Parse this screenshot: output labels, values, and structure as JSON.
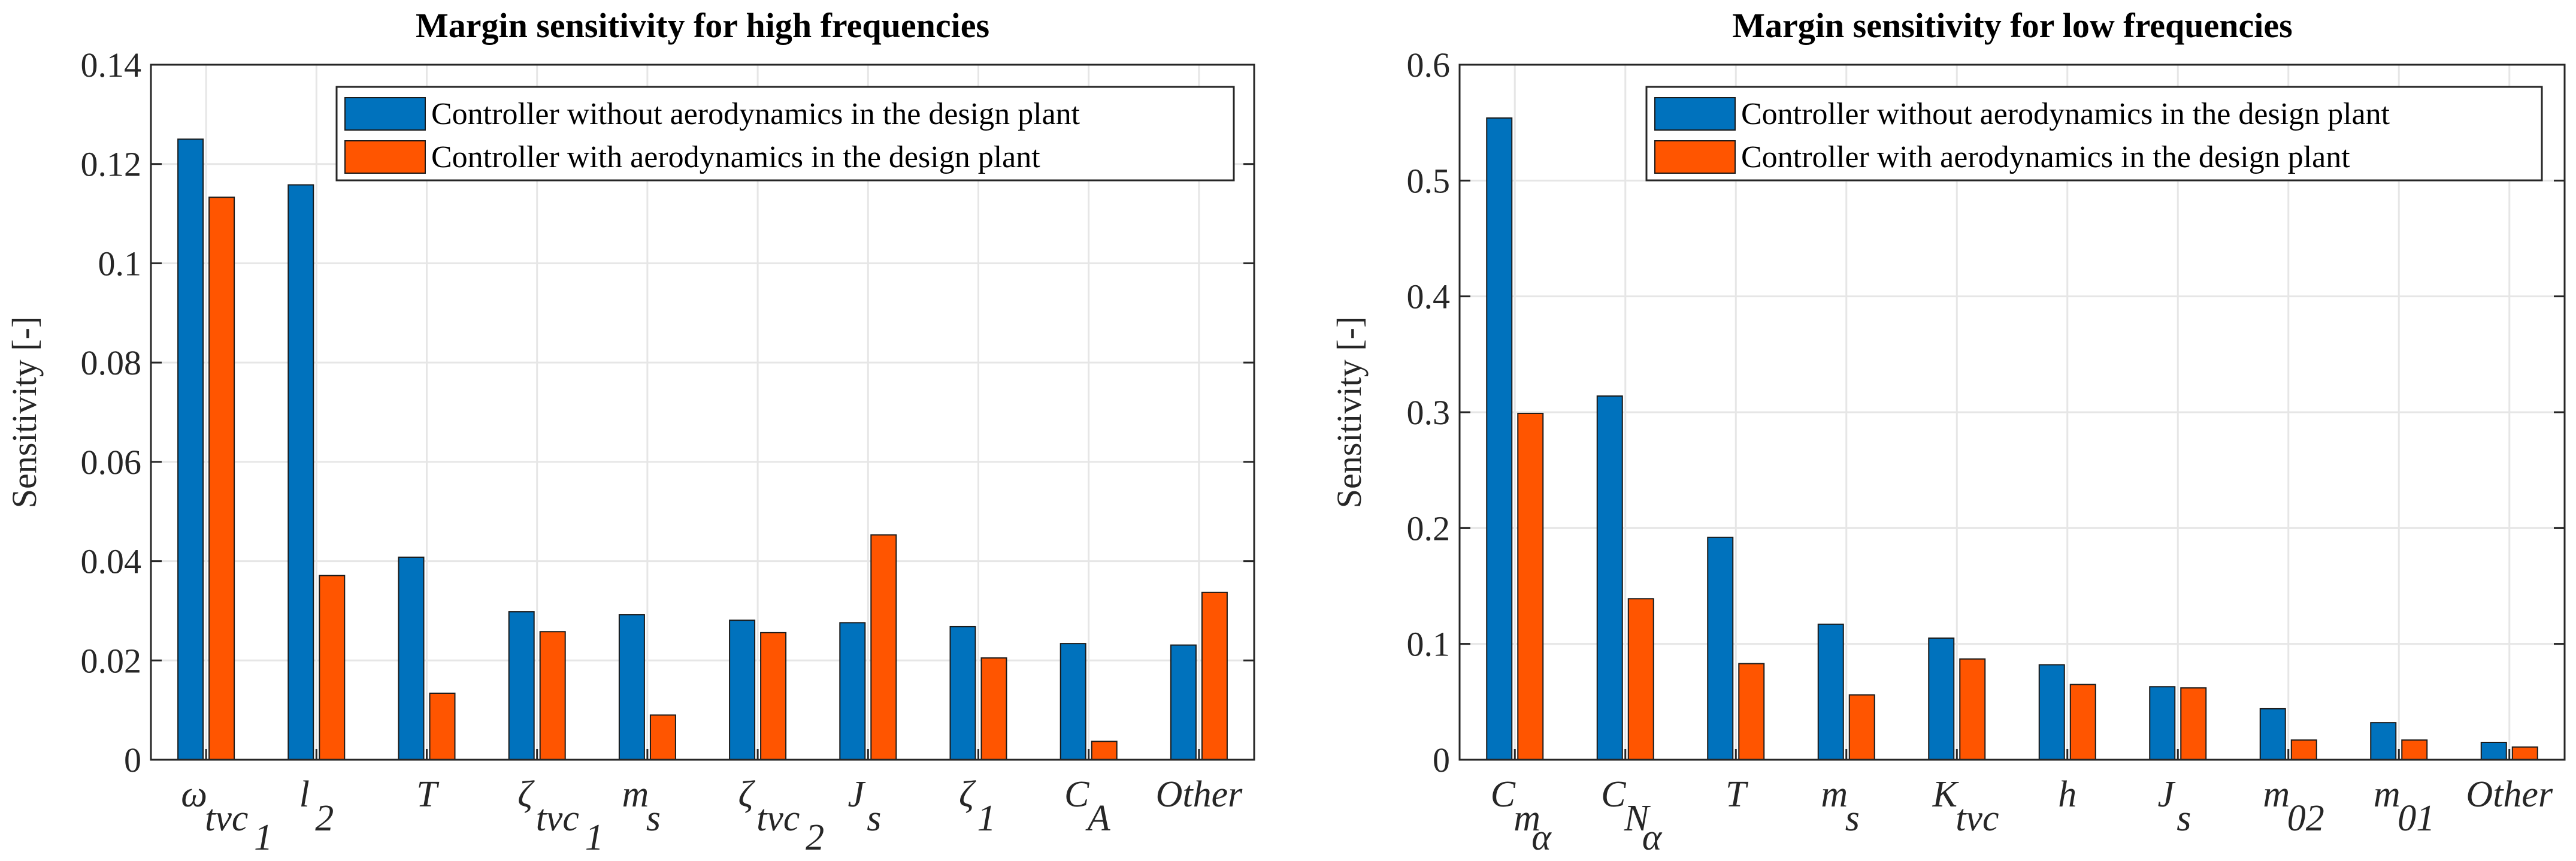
{
  "chart_data": [
    {
      "type": "bar",
      "title": "Margin sensitivity for high frequencies",
      "xlabel": "",
      "ylabel": "Sensitivity [-]",
      "ylim": [
        0,
        0.14
      ],
      "yticks": [
        "0",
        "0.02",
        "0.04",
        "0.06",
        "0.08",
        "0.1",
        "0.12",
        "0.14"
      ],
      "grid": true,
      "legend_position": "top-right",
      "categories": [
        {
          "base": "ω",
          "sub": "tvc",
          "subsub": "1"
        },
        {
          "base": "l",
          "sub": "2",
          "subsub": ""
        },
        {
          "base": "T",
          "sub": "",
          "subsub": ""
        },
        {
          "base": "ζ",
          "sub": "tvc",
          "subsub": "1"
        },
        {
          "base": "m",
          "sub": "s",
          "subsub": ""
        },
        {
          "base": "ζ",
          "sub": "tvc",
          "subsub": "2"
        },
        {
          "base": "J",
          "sub": "s",
          "subsub": ""
        },
        {
          "base": "ζ",
          "sub": "1",
          "subsub": ""
        },
        {
          "base": "C",
          "sub": "A",
          "subsub": ""
        },
        {
          "base": "Other",
          "sub": "",
          "subsub": ""
        }
      ],
      "series": [
        {
          "name": "Controller without aerodynamics in the design plant",
          "color": "#0072BD",
          "values": [
            0.125,
            0.1158,
            0.0408,
            0.0298,
            0.0292,
            0.0281,
            0.0276,
            0.0268,
            0.0234,
            0.0231
          ]
        },
        {
          "name": "Controller with aerodynamics in the design plant",
          "color": "#FF5500",
          "values": [
            0.1133,
            0.0371,
            0.0134,
            0.0258,
            0.009,
            0.0256,
            0.0453,
            0.0205,
            0.0037,
            0.0337
          ]
        }
      ]
    },
    {
      "type": "bar",
      "title": "Margin sensitivity for low frequencies",
      "xlabel": "",
      "ylabel": "Sensitivity [-]",
      "ylim": [
        0,
        0.6
      ],
      "yticks": [
        "0",
        "0.1",
        "0.2",
        "0.3",
        "0.4",
        "0.5",
        "0.6"
      ],
      "grid": true,
      "legend_position": "top-right",
      "categories": [
        {
          "base": "C",
          "sub": "m",
          "subsub": "α"
        },
        {
          "base": "C",
          "sub": "N",
          "subsub": "α"
        },
        {
          "base": "T",
          "sub": "",
          "subsub": ""
        },
        {
          "base": "m",
          "sub": "s",
          "subsub": ""
        },
        {
          "base": "K",
          "sub": "tvc",
          "subsub": ""
        },
        {
          "base": "h",
          "sub": "",
          "subsub": ""
        },
        {
          "base": "J",
          "sub": "s",
          "subsub": ""
        },
        {
          "base": "m",
          "sub": "02",
          "subsub": ""
        },
        {
          "base": "m",
          "sub": "01",
          "subsub": ""
        },
        {
          "base": "Other",
          "sub": "",
          "subsub": ""
        }
      ],
      "series": [
        {
          "name": "Controller without aerodynamics in the design plant",
          "color": "#0072BD",
          "values": [
            0.554,
            0.314,
            0.192,
            0.117,
            0.105,
            0.082,
            0.063,
            0.044,
            0.032,
            0.015
          ]
        },
        {
          "name": "Controller with aerodynamics in the design plant",
          "color": "#FF5500",
          "values": [
            0.299,
            0.139,
            0.083,
            0.056,
            0.087,
            0.065,
            0.062,
            0.017,
            0.017,
            0.011
          ]
        }
      ]
    }
  ]
}
